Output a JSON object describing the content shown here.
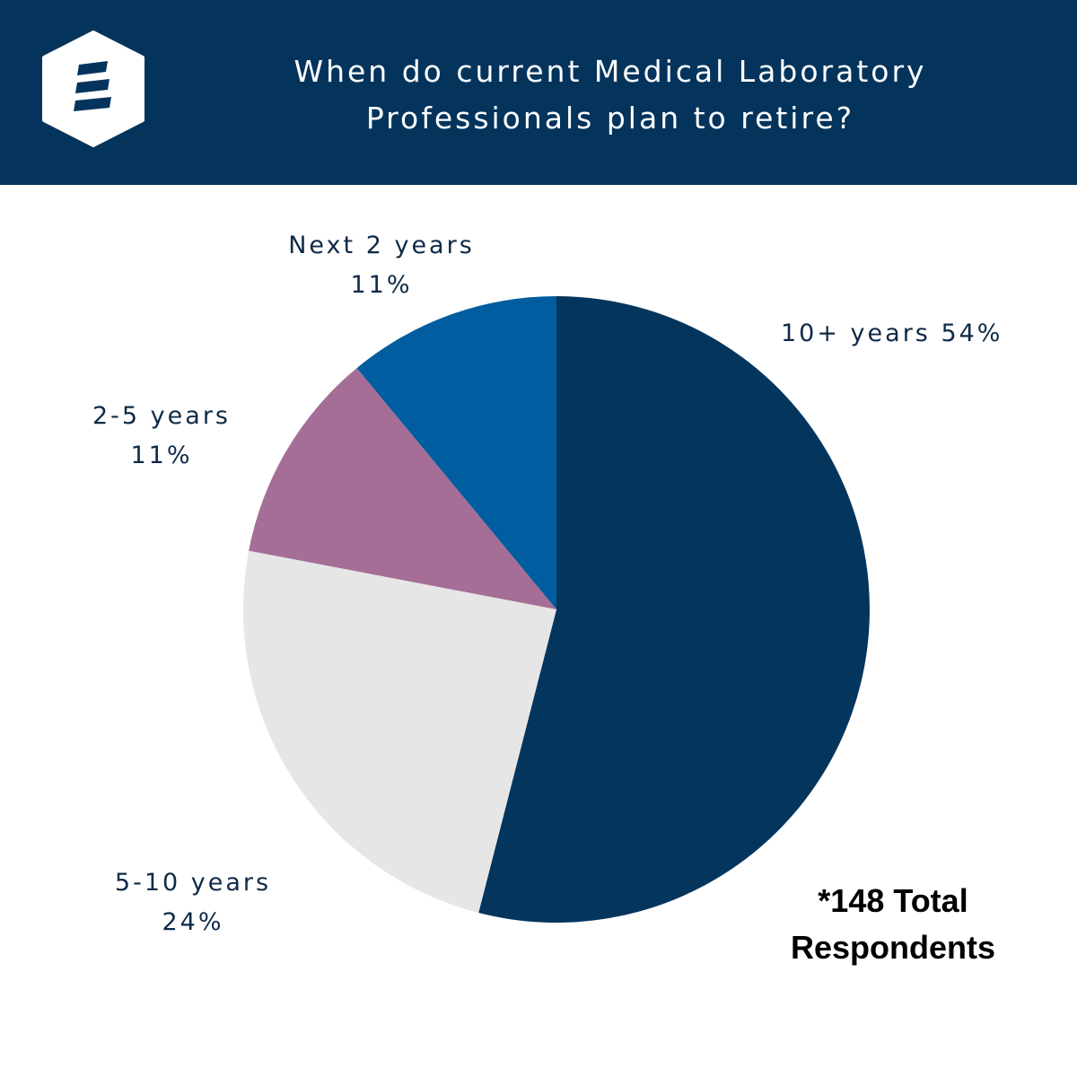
{
  "header": {
    "title_line1": "When do current Medical Laboratory",
    "title_line2": "Professionals plan to retire?",
    "background": "#04345c"
  },
  "logo": {
    "icon": "hexagon-logo-icon",
    "color": "#ffffff",
    "mark_color": "#04345c"
  },
  "chart_data": {
    "type": "pie",
    "title": "When do current Medical Laboratory Professionals plan to retire?",
    "start_angle_deg": 0,
    "direction": "clockwise",
    "slices": [
      {
        "key": "ten-plus",
        "label": "10+ years",
        "value": 54,
        "value_label": "54%",
        "display": "10+ years 54%",
        "color": "#04355d"
      },
      {
        "key": "five-to-ten",
        "label": "5-10 years",
        "value": 24,
        "value_label": "24%",
        "color": "#e6e6e6"
      },
      {
        "key": "two-to-five",
        "label": "2-5 years",
        "value": 11,
        "value_label": "11%",
        "color": "#a56e96"
      },
      {
        "key": "next-two",
        "label": "Next 2 years",
        "value": 11,
        "value_label": "11%",
        "color": "#005d9f"
      }
    ]
  },
  "footnote": {
    "line1": "*148 Total",
    "line2": "Respondents"
  }
}
